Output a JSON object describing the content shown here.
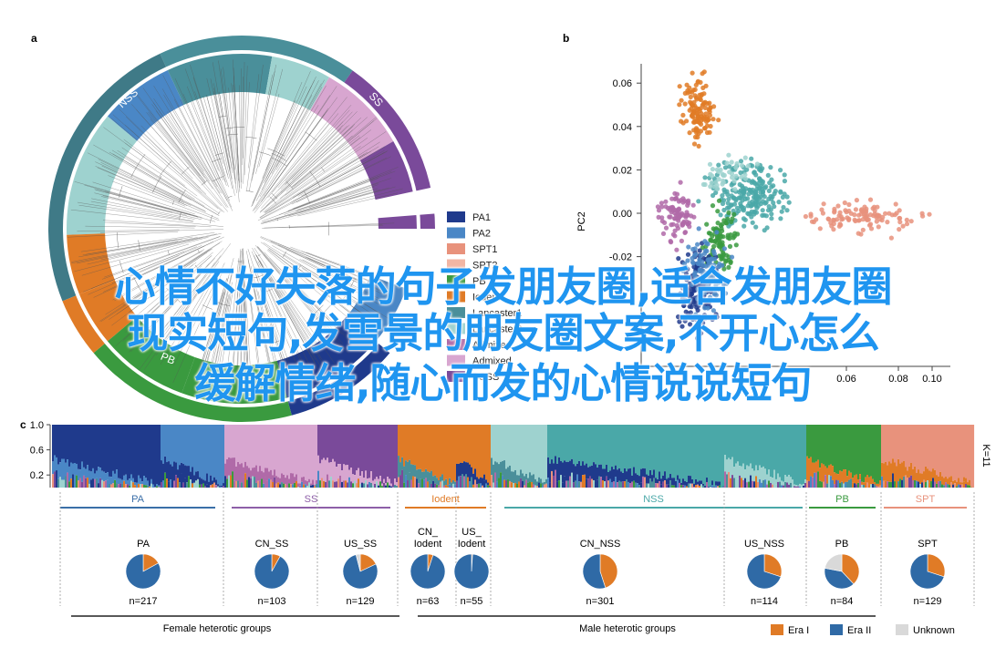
{
  "panels": {
    "a": "a",
    "b": "b",
    "c": "c"
  },
  "tree": {
    "ring_labels": [
      "NSS",
      "SS",
      "PB"
    ],
    "legend": [
      {
        "label": "PA1",
        "color": "#1f3a8c"
      },
      {
        "label": "PA2",
        "color": "#4a87c6"
      },
      {
        "label": "SPT1",
        "color": "#e8927c"
      },
      {
        "label": "SPT2",
        "color": "#f2b6a4"
      },
      {
        "label": "PB",
        "color": "#3a9a3f"
      },
      {
        "label": "Iodent",
        "color": "#e07b26"
      },
      {
        "label": "Lancaster1",
        "color": "#4a8f9a"
      },
      {
        "label": "Lancaster2",
        "color": "#9ed2cf"
      },
      {
        "label": "Admixed",
        "color": "#b06aa8"
      },
      {
        "label": "Admixed",
        "color": "#d8a6d0"
      },
      {
        "label": "BSSS",
        "color": "#7a4a9a"
      }
    ]
  },
  "pca": {
    "ylabel": "PC2",
    "yticks": [
      "0.06",
      "0.04",
      "0.02",
      "0.00",
      "-0.02"
    ],
    "xticks": [
      "0.06",
      "0.08",
      "0.10"
    ]
  },
  "structure": {
    "yticks": [
      "1.0",
      "0.6",
      "0.2"
    ],
    "k_label": "K=11",
    "groups": [
      {
        "label": "PA",
        "color": "#3b6fa8"
      },
      {
        "label": "SS",
        "color": "#8e5fa8"
      },
      {
        "label": "Iodent",
        "color": "#e07b26"
      },
      {
        "label": "NSS",
        "color": "#4aa8a8"
      },
      {
        "label": "PB",
        "color": "#3a9a3f"
      },
      {
        "label": "SPT",
        "color": "#e8927c"
      }
    ],
    "pies": [
      {
        "label": "PA",
        "n": "n=217",
        "era1": 0.17,
        "unknown": 0.0
      },
      {
        "label": "CN_SS",
        "n": "n=103",
        "era1": 0.08,
        "unknown": 0.0
      },
      {
        "label": "US_SS",
        "n": "n=129",
        "era1": 0.18,
        "unknown": 0.04
      },
      {
        "label": "CN_\nIodent",
        "n": "n=63",
        "era1": 0.05,
        "unknown": 0.0
      },
      {
        "label": "US_\nIodent",
        "n": "n=55",
        "era1": 0.01,
        "unknown": 0.0
      },
      {
        "label": "CN_NSS",
        "n": "n=301",
        "era1": 0.45,
        "unknown": 0.0
      },
      {
        "label": "US_NSS",
        "n": "n=114",
        "era1": 0.3,
        "unknown": 0.0
      },
      {
        "label": "PB",
        "n": "n=84",
        "era1": 0.38,
        "unknown": 0.22
      },
      {
        "label": "SPT",
        "n": "n=129",
        "era1": 0.3,
        "unknown": 0.0
      }
    ],
    "footer": {
      "female": "Female heterotic groups",
      "male": "Male heterotic groups"
    },
    "era_legend": [
      {
        "label": "Era I",
        "color": "#e07b26"
      },
      {
        "label": "Era II",
        "color": "#2f6aa6"
      },
      {
        "label": "Unknown",
        "color": "#d9d9d9"
      }
    ]
  },
  "overlay": {
    "line1": "心情不好失落的句子发朋友圈,适合发朋友圈",
    "line2": "现实短句,发雪景的朋友圈文案,不开心怎么",
    "line3": "缓解情绪,随心而发的心情说说短句"
  }
}
